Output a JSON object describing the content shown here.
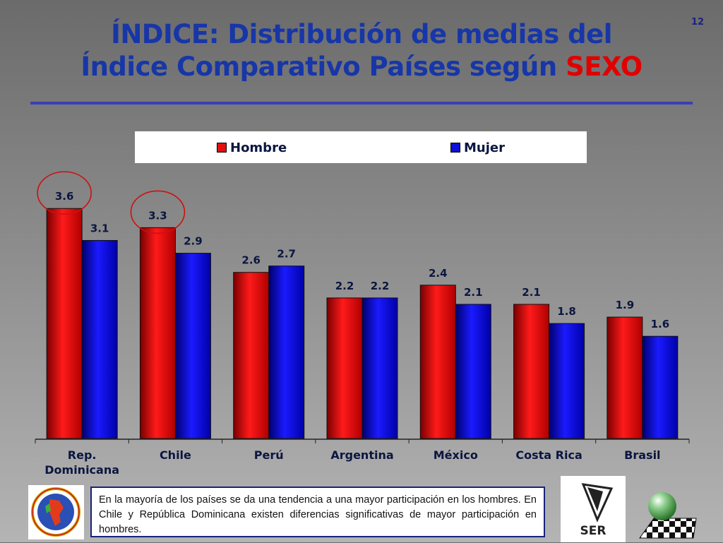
{
  "slide": {
    "number": "12",
    "title_line1": "ÍNDICE: Distribución de medias del",
    "title_line2_main": "Índice Comparativo Países según ",
    "title_line2_accent": "SEXO",
    "note": "En la mayoría de los países se da una tendencia a una mayor participación en los hombres. En Chile y República Dominicana existen diferencias significativas de mayor participación en hombres.",
    "logo_ser_text": "SER"
  },
  "colors": {
    "hombre": "#e41010",
    "mujer": "#1010d8",
    "title": "#1736a8",
    "accent": "#e00000",
    "highlight_circle": "#cc1111"
  },
  "chart_data": {
    "type": "bar",
    "categories": [
      "Rep. Dominicana",
      "Chile",
      "Perú",
      "Argentina",
      "México",
      "Costa Rica",
      "Brasil"
    ],
    "category_labels": [
      [
        "Rep.",
        "Dominicana"
      ],
      [
        "Chile"
      ],
      [
        "Perú"
      ],
      [
        "Argentina"
      ],
      [
        "México"
      ],
      [
        "Costa Rica"
      ],
      [
        "Brasil"
      ]
    ],
    "series": [
      {
        "name": "Hombre",
        "values": [
          3.6,
          3.3,
          2.6,
          2.2,
          2.4,
          2.1,
          1.9
        ]
      },
      {
        "name": "Mujer",
        "values": [
          3.1,
          2.9,
          2.7,
          2.2,
          2.1,
          1.8,
          1.6
        ]
      }
    ],
    "highlighted_categories": [
      "Rep. Dominicana",
      "Chile"
    ],
    "ylim": [
      0,
      4
    ],
    "grid": false,
    "legend": "top"
  }
}
